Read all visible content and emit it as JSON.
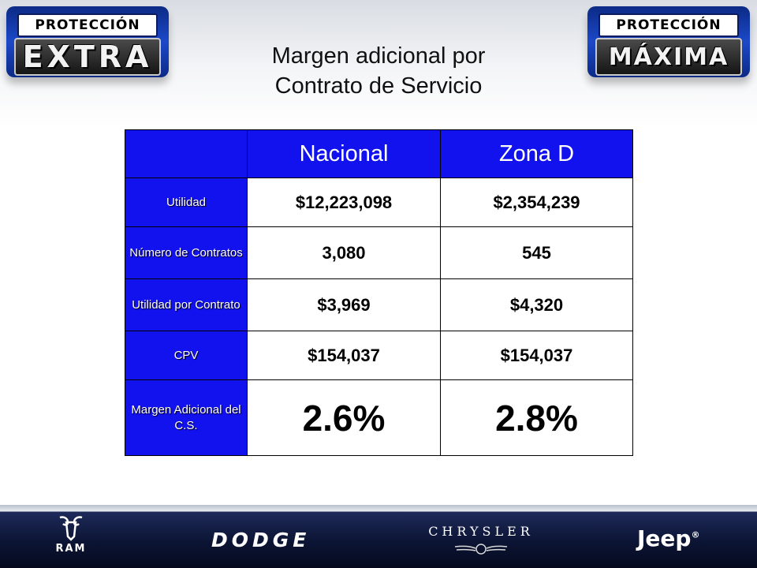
{
  "logos": {
    "left": {
      "top": "PROTECCIÓN",
      "bottom": "EXTRA"
    },
    "right": {
      "top": "PROTECCIÓN",
      "bottom": "MÁXIMA"
    }
  },
  "title": {
    "line1": "Margen adicional por",
    "line2": "Contrato de Servicio"
  },
  "table": {
    "columns": [
      "Nacional",
      "Zona D"
    ],
    "rows": [
      {
        "label": "Utilidad",
        "nacional": "$12,223,098",
        "zona_d": "$2,354,239"
      },
      {
        "label": "Número de Contratos",
        "nacional": "3,080",
        "zona_d": "545"
      },
      {
        "label": "Utilidad por Contrato",
        "nacional": "$3,969",
        "zona_d": "$4,320"
      },
      {
        "label": "CPV",
        "nacional": "$154,037",
        "zona_d": "$154,037"
      },
      {
        "label": "Margen Adicional del C.S.",
        "nacional": "2.6%",
        "zona_d": "2.8%"
      }
    ]
  },
  "colors": {
    "header_blue": "#1212ee",
    "bottom_bar": "#0b1433"
  },
  "brands": {
    "ram": "RAM",
    "dodge": "DODGE",
    "chrysler": "CHRYSLER",
    "jeep": "Jeep",
    "jeep_mark": "®"
  }
}
